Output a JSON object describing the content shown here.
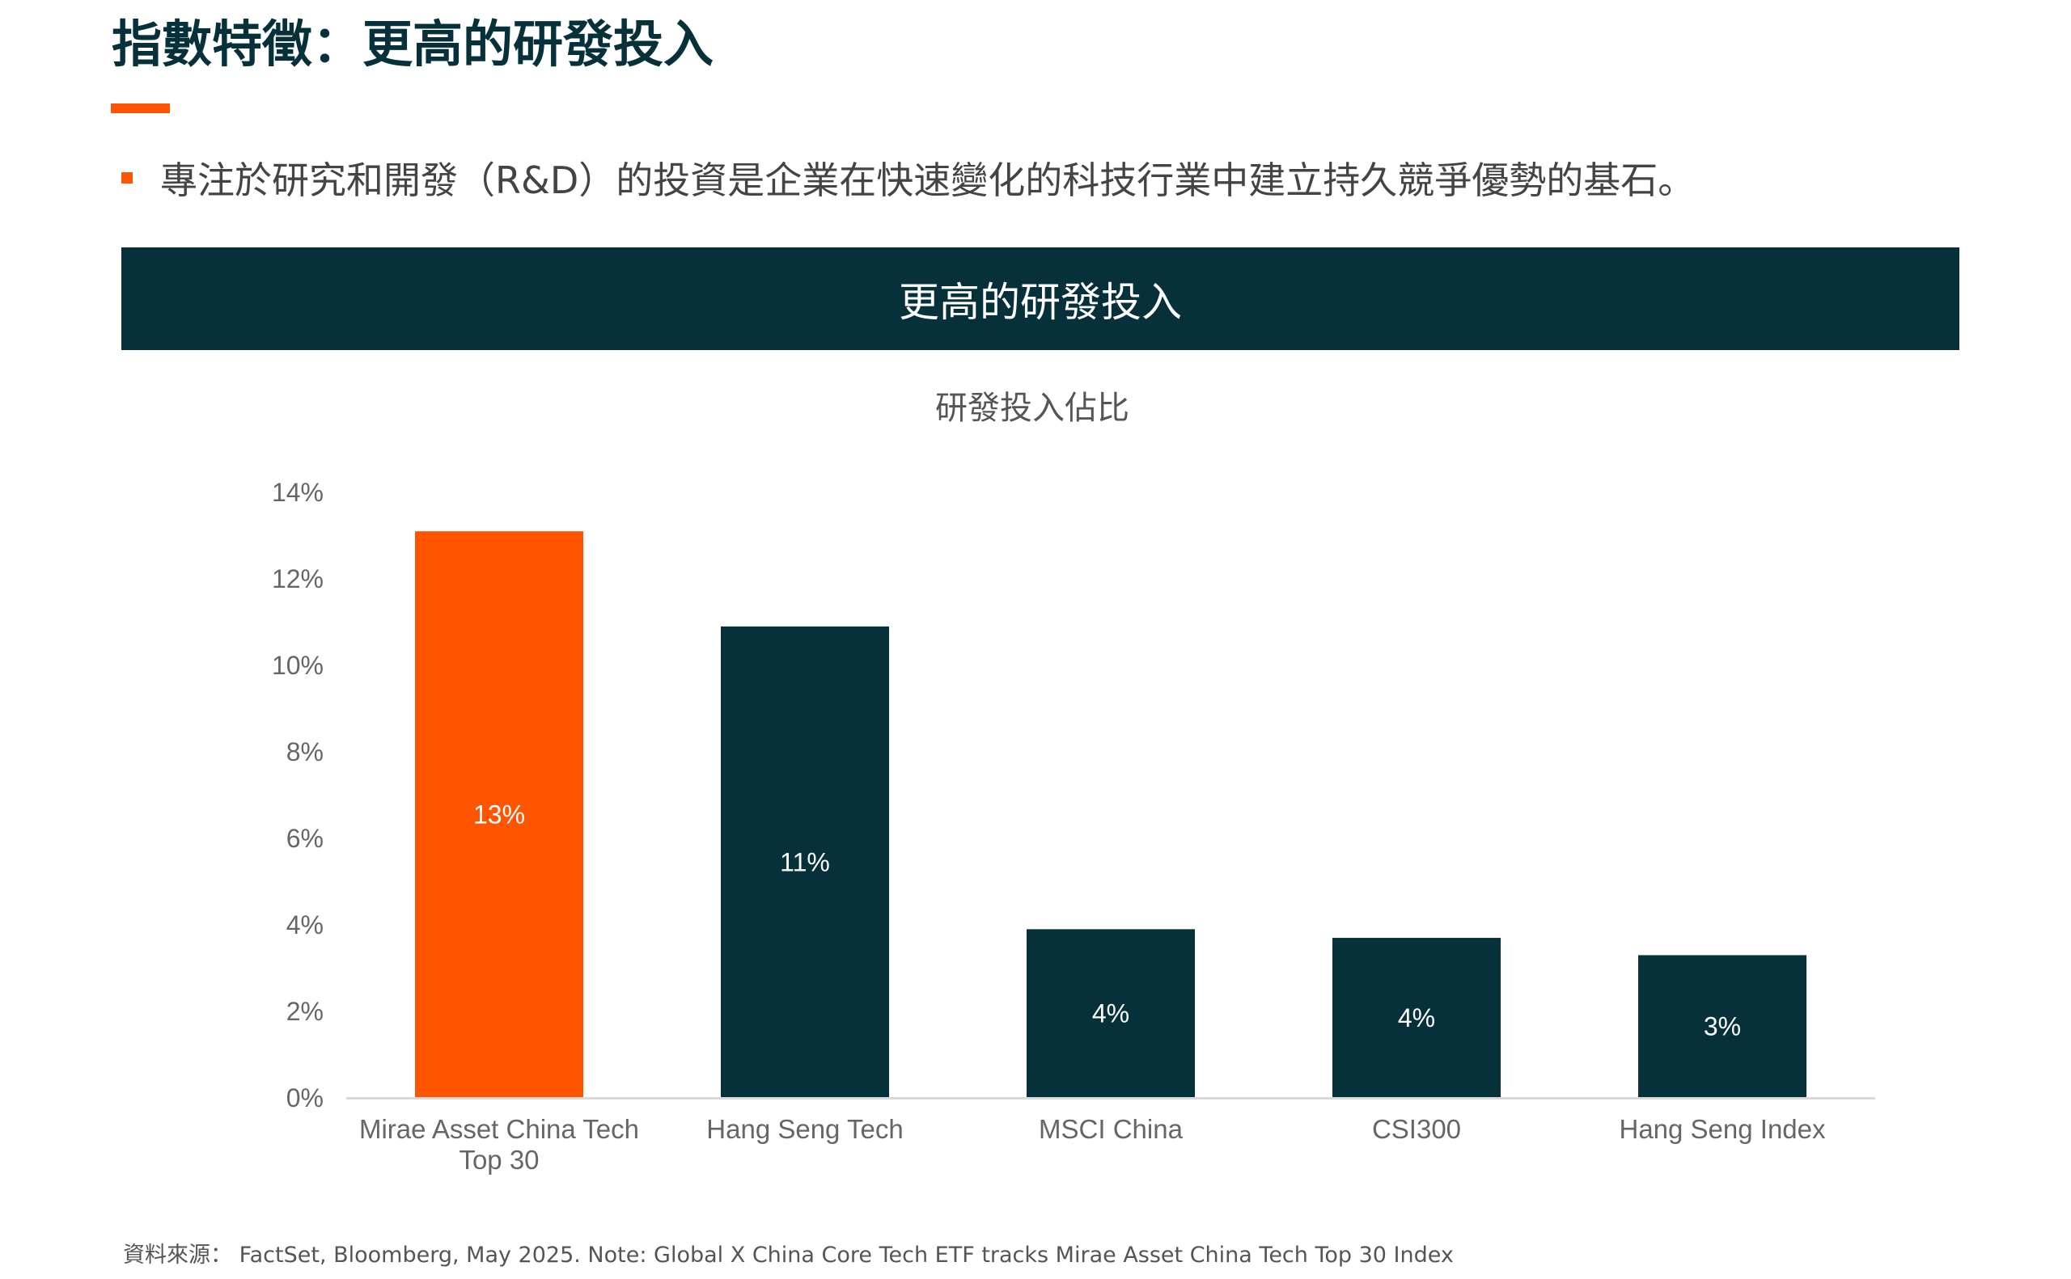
{
  "page": {
    "title": "指數特徵：更高的研發投入",
    "bullet": "專注於研究和開發（R&D）的投資是企業在快速變化的科技行業中建立持久競爭優勢的基石。",
    "banner": "更高的研發投入",
    "source_note": "資料來源： FactSet, Bloomberg, May 2025. Note: Global X China Core Tech ETF tracks Mirae Asset China Tech Top 30 Index"
  },
  "colors": {
    "accent": "#ff5500",
    "dark": "#06303a",
    "axis": "#d9d9d9"
  },
  "chart_data": {
    "type": "bar",
    "title": "研發投入佔比",
    "categories": [
      [
        "Mirae Asset China Tech",
        "Top 30"
      ],
      [
        "Hang Seng Tech"
      ],
      [
        "MSCI China"
      ],
      [
        "CSI300"
      ],
      [
        "Hang Seng Index"
      ]
    ],
    "values": [
      13.1,
      10.9,
      3.9,
      3.7,
      3.3
    ],
    "value_labels": [
      "13%",
      "11%",
      "4%",
      "4%",
      "3%"
    ],
    "bar_colors": [
      "#ff5500",
      "#06303a",
      "#06303a",
      "#06303a",
      "#06303a"
    ],
    "ylim": [
      0,
      14
    ],
    "yticks": [
      0,
      2,
      4,
      6,
      8,
      10,
      12,
      14
    ],
    "ytick_labels": [
      "0%",
      "2%",
      "4%",
      "6%",
      "8%",
      "10%",
      "12%",
      "14%"
    ],
    "grid": false,
    "legend": "none",
    "xlabel": "",
    "ylabel": ""
  }
}
